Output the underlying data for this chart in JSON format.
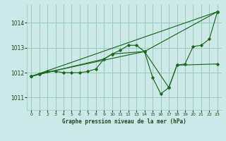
{
  "title": "Graphe pression niveau de la mer (hPa)",
  "bg_color": "#cce8e8",
  "grid_color": "#99ccbb",
  "line_color": "#1a6b1a",
  "text_color": "#1a4a1a",
  "xlim": [
    -0.5,
    23.5
  ],
  "ylim": [
    1010.5,
    1014.75
  ],
  "yticks": [
    1011,
    1012,
    1013,
    1014
  ],
  "xticks": [
    0,
    1,
    2,
    3,
    4,
    5,
    6,
    7,
    8,
    9,
    10,
    11,
    12,
    13,
    14,
    15,
    16,
    17,
    18,
    19,
    20,
    21,
    22,
    23
  ],
  "series1_x": [
    0,
    1,
    2,
    3,
    4,
    5,
    6,
    7,
    8,
    9,
    10,
    11,
    12,
    13,
    14,
    15,
    16,
    17,
    18,
    19,
    20,
    21,
    22,
    23
  ],
  "series1_y": [
    1011.85,
    1011.95,
    1012.05,
    1012.05,
    1012.0,
    1012.0,
    1012.0,
    1012.05,
    1012.15,
    1012.55,
    1012.75,
    1012.9,
    1013.1,
    1013.1,
    1012.85,
    1011.8,
    1011.15,
    1011.4,
    1012.3,
    1012.35,
    1013.05,
    1013.1,
    1013.35,
    1014.45
  ],
  "series2_x": [
    0,
    23
  ],
  "series2_y": [
    1011.85,
    1014.45
  ],
  "series3_x": [
    0,
    1,
    14,
    23
  ],
  "series3_y": [
    1011.85,
    1011.95,
    1012.85,
    1014.45
  ],
  "series4_x": [
    0,
    9,
    10,
    14,
    17,
    18,
    23
  ],
  "series4_y": [
    1011.85,
    1012.55,
    1012.75,
    1012.85,
    1011.4,
    1012.3,
    1012.35
  ]
}
